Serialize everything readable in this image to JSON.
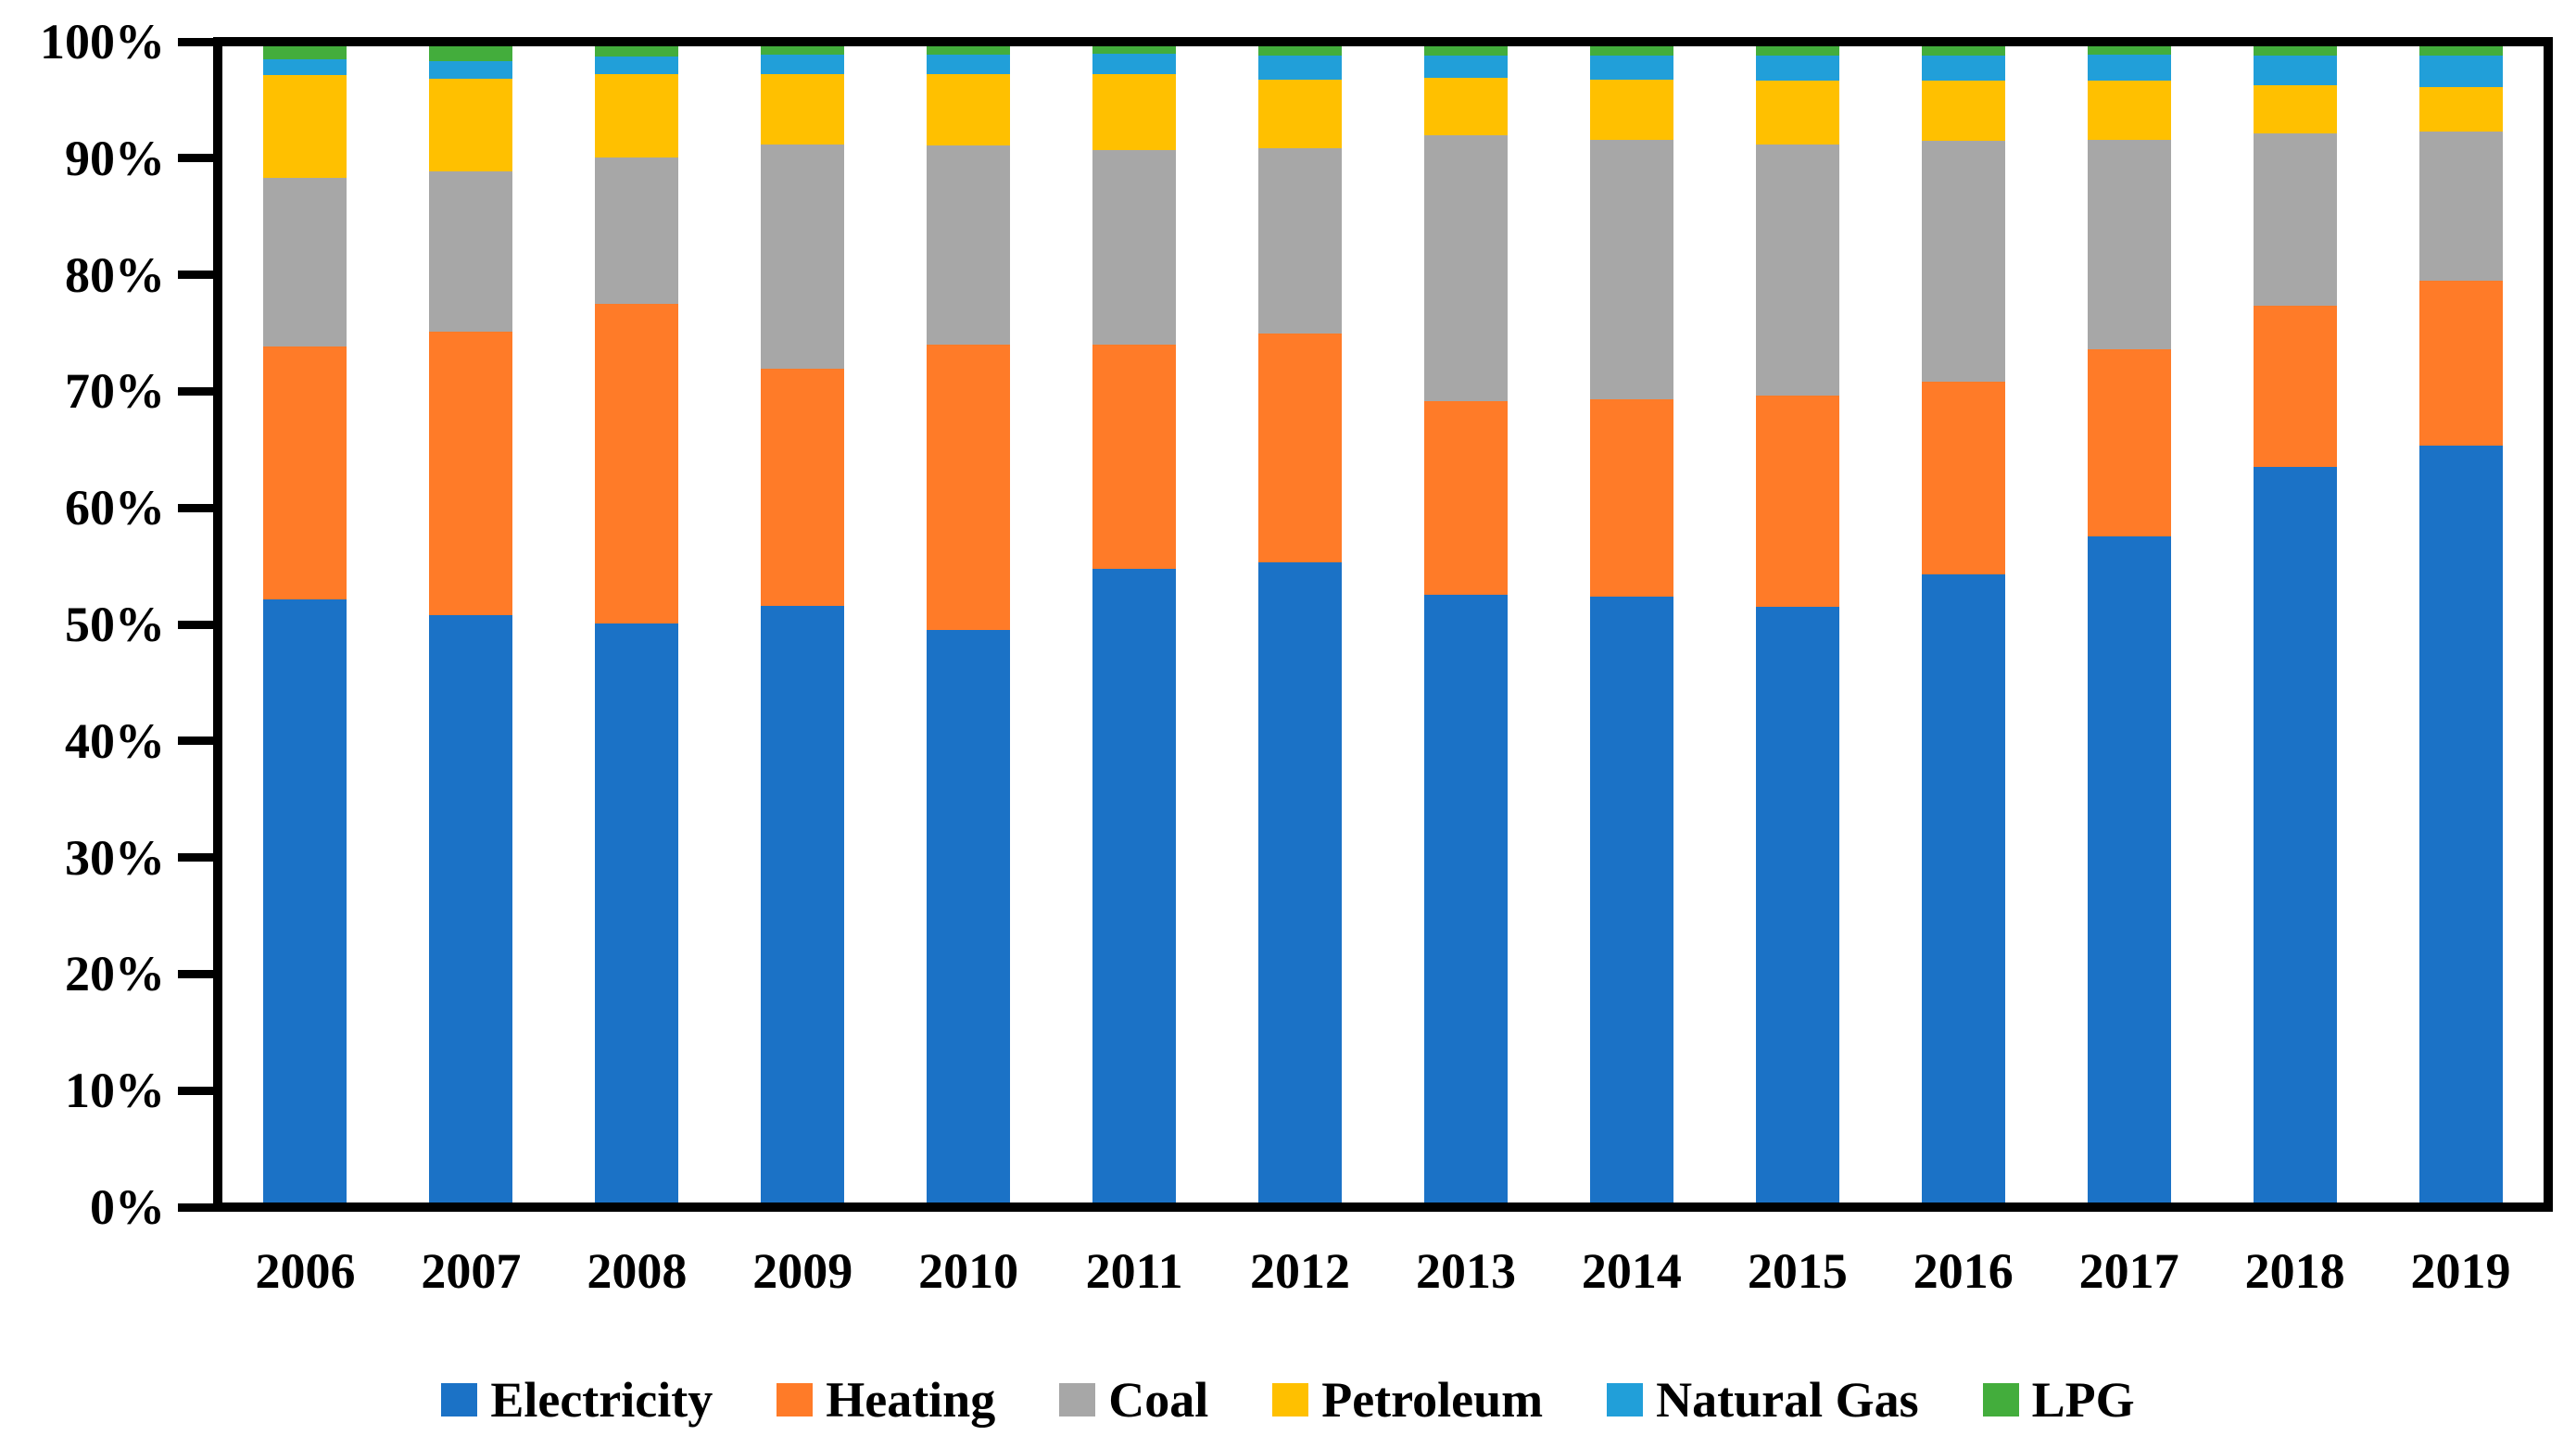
{
  "chart_data": {
    "type": "bar",
    "stacked_percent": true,
    "title": "",
    "xlabel": "",
    "ylabel": "",
    "ylim": [
      0,
      100
    ],
    "grid": false,
    "legend_position": "bottom",
    "y_ticks": [
      "0%",
      "10%",
      "20%",
      "30%",
      "40%",
      "50%",
      "60%",
      "70%",
      "80%",
      "90%",
      "100%"
    ],
    "categories": [
      "2006",
      "2007",
      "2008",
      "2009",
      "2010",
      "2011",
      "2012",
      "2013",
      "2014",
      "2015",
      "2016",
      "2017",
      "2018",
      "2019"
    ],
    "series": [
      {
        "name": "Electricity",
        "color": "#1B72C6",
        "values": [
          52.2,
          50.8,
          50.1,
          51.6,
          49.5,
          54.8,
          55.4,
          52.6,
          52.4,
          51.5,
          54.3,
          57.6,
          63.6,
          65.5
        ]
      },
      {
        "name": "Heating",
        "color": "#FF7B28",
        "values": [
          21.8,
          24.5,
          27.6,
          20.5,
          24.7,
          19.4,
          19.8,
          16.7,
          17.1,
          18.3,
          16.7,
          16.2,
          14.0,
          14.2
        ]
      },
      {
        "name": "Coal",
        "color": "#A7A7A7",
        "values": [
          14.6,
          13.9,
          12.7,
          19.4,
          17.2,
          16.8,
          16.0,
          23.0,
          22.4,
          21.7,
          20.8,
          18.1,
          14.9,
          12.9
        ]
      },
      {
        "name": "Petroleum",
        "color": "#FFC000",
        "values": [
          8.9,
          8.0,
          7.2,
          6.1,
          6.2,
          6.6,
          5.9,
          5.0,
          5.2,
          5.5,
          5.2,
          5.1,
          4.1,
          3.9
        ]
      },
      {
        "name": "Natural Gas",
        "color": "#219FD9",
        "values": [
          1.4,
          1.5,
          1.5,
          1.7,
          1.7,
          1.8,
          2.1,
          1.9,
          2.1,
          2.2,
          2.2,
          2.3,
          2.6,
          2.7
        ]
      },
      {
        "name": "LPG",
        "color": "#43AD3C",
        "values": [
          1.1,
          1.3,
          0.9,
          0.7,
          0.7,
          0.6,
          0.8,
          0.8,
          0.8,
          0.8,
          0.8,
          0.7,
          0.8,
          0.8
        ]
      }
    ]
  },
  "styles": {
    "ink": "#000000",
    "background": "#FFFFFF"
  }
}
